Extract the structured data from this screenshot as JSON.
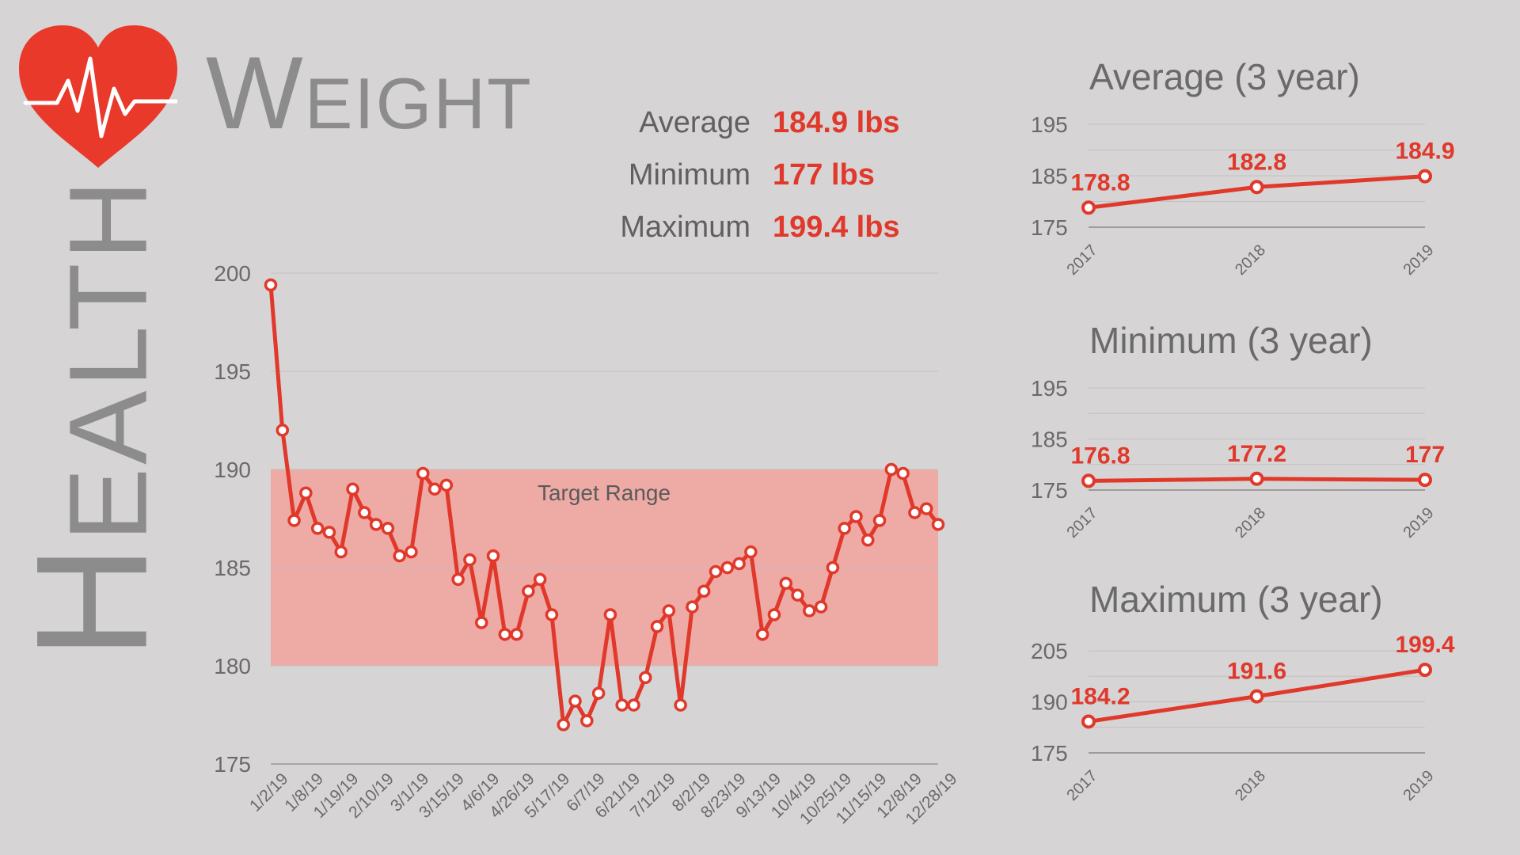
{
  "side_title": "Health",
  "page_title": "Weight",
  "stats": [
    {
      "label": "Average",
      "value": "184.9 lbs"
    },
    {
      "label": "Minimum",
      "value": "177 lbs"
    },
    {
      "label": "Maximum",
      "value": "199.4 lbs"
    }
  ],
  "colors": {
    "accent": "#e0392b",
    "band": "#eeaaa5",
    "grid": "#c2c0c1",
    "axis_text": "#6a6a6a"
  },
  "icon": "heart-pulse-icon",
  "chart_data": [
    {
      "type": "line",
      "title": "",
      "xlabel": "",
      "ylabel": "",
      "ylim": [
        175,
        200
      ],
      "yticks": [
        175,
        180,
        185,
        190,
        195,
        200
      ],
      "grid": true,
      "band": {
        "label": "Target Range",
        "from": 180,
        "to": 190
      },
      "x_tick_labels": [
        "1/2/19",
        "1/8/19",
        "1/19/19",
        "2/10/19",
        "3/1/19",
        "3/15/19",
        "4/6/19",
        "4/26/19",
        "5/17/19",
        "6/7/19",
        "6/21/19",
        "7/12/19",
        "8/2/19",
        "8/23/19",
        "9/13/19",
        "10/4/19",
        "10/25/19",
        "11/15/19",
        "12/8/19",
        "12/28/19"
      ],
      "series": [
        {
          "values": [
            199.4,
            192.0,
            187.4,
            188.8,
            187.0,
            186.8,
            185.8,
            189.0,
            187.8,
            187.2,
            187.0,
            185.6,
            185.8,
            189.8,
            189.0,
            189.2,
            184.4,
            185.4,
            182.2,
            185.6,
            181.6,
            181.6,
            183.8,
            184.4,
            182.6,
            177.0,
            178.2,
            177.2,
            178.6,
            182.6,
            178.0,
            178.0,
            179.4,
            182.0,
            182.8,
            178.0,
            183.0,
            183.8,
            184.8,
            185.0,
            185.2,
            185.8,
            181.6,
            182.6,
            184.2,
            183.6,
            182.8,
            183.0,
            185.0,
            187.0,
            187.6,
            186.4,
            187.4,
            190.0,
            189.8,
            187.8,
            188.0,
            187.2
          ]
        }
      ]
    },
    {
      "type": "line",
      "title": "Average (3 year)",
      "categories": [
        "2017",
        "2018",
        "2019"
      ],
      "values": [
        178.8,
        182.8,
        184.9
      ],
      "data_labels": [
        "178.8",
        "182.8",
        "184.9"
      ],
      "yticks": [
        175,
        185,
        195
      ],
      "ylim": [
        175,
        195
      ],
      "grid": true
    },
    {
      "type": "line",
      "title": "Minimum (3 year)",
      "categories": [
        "2017",
        "2018",
        "2019"
      ],
      "values": [
        176.8,
        177.2,
        177
      ],
      "data_labels": [
        "176.8",
        "177.2",
        "177"
      ],
      "yticks": [
        175,
        185,
        195
      ],
      "ylim": [
        175,
        195
      ],
      "grid": true
    },
    {
      "type": "line",
      "title": "Maximum (3 year)",
      "categories": [
        "2017",
        "2018",
        "2019"
      ],
      "values": [
        184.2,
        191.6,
        199.4
      ],
      "data_labels": [
        "184.2",
        "191.6",
        "199.4"
      ],
      "yticks": [
        175,
        190,
        205
      ],
      "ylim": [
        175,
        205
      ],
      "grid": true
    }
  ]
}
